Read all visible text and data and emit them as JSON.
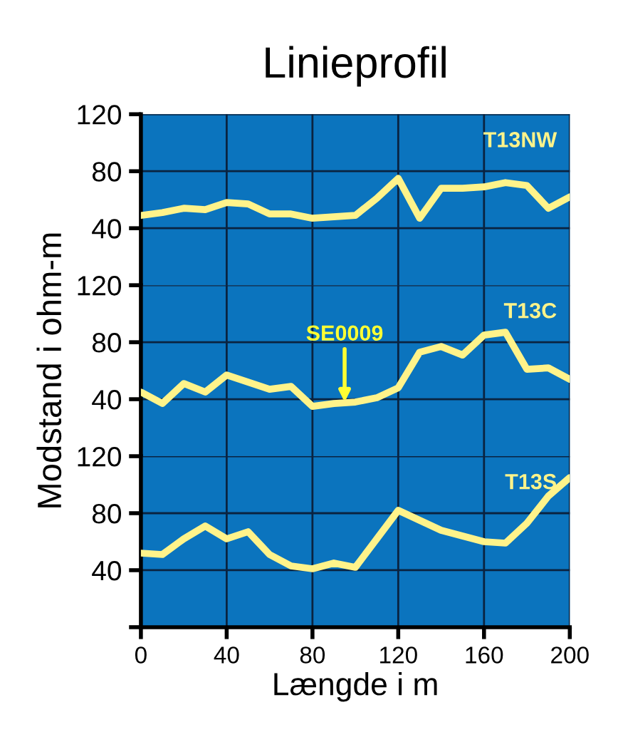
{
  "chart_data": [
    {
      "type": "line",
      "title": "Linieprofil",
      "x": [
        0,
        10,
        20,
        30,
        40,
        50,
        60,
        70,
        80,
        90,
        100,
        110,
        120,
        130,
        140,
        150,
        160,
        170,
        180,
        190,
        200
      ],
      "series": [
        {
          "name": "T13NW",
          "color": "#fff38a",
          "values": [
            49,
            51,
            54,
            53,
            58,
            57,
            50,
            50,
            47,
            48,
            49,
            61,
            75,
            47,
            68,
            68,
            69,
            72,
            70,
            54,
            62
          ]
        }
      ],
      "xlim": [
        0,
        200
      ],
      "xticks": [
        0,
        40,
        80,
        120,
        160,
        200
      ],
      "ylim": [
        0,
        120
      ],
      "yticks": [
        40,
        80,
        120
      ],
      "grid": true,
      "tick_labels": "y"
    },
    {
      "type": "line",
      "ylabel": "Modstand i ohm-m",
      "x": [
        0,
        10,
        20,
        30,
        40,
        50,
        60,
        70,
        80,
        90,
        100,
        110,
        120,
        130,
        140,
        150,
        160,
        170,
        180,
        190,
        200
      ],
      "series": [
        {
          "name": "T13C",
          "color": "#fff38a",
          "values": [
            45,
            37,
            51,
            45,
            57,
            52,
            47,
            49,
            35,
            37,
            38,
            41,
            48,
            73,
            77,
            71,
            85,
            87,
            61,
            62,
            54
          ]
        }
      ],
      "xlim": [
        0,
        200
      ],
      "xticks": [
        0,
        40,
        80,
        120,
        160,
        200
      ],
      "ylim": [
        0,
        120
      ],
      "yticks": [
        40,
        80,
        120
      ],
      "grid": true,
      "tick_labels": "y",
      "annotations": [
        {
          "text": "SE0009",
          "x": 95,
          "y": 38
        }
      ]
    },
    {
      "type": "line",
      "xlabel": "Længde i m",
      "x": [
        0,
        10,
        20,
        30,
        40,
        50,
        60,
        70,
        80,
        90,
        100,
        110,
        120,
        130,
        140,
        150,
        160,
        170,
        180,
        190,
        200
      ],
      "series": [
        {
          "name": "T13S",
          "color": "#fff38a",
          "values": [
            52,
            51,
            62,
            71,
            62,
            67,
            51,
            43,
            41,
            45,
            42,
            62,
            82,
            75,
            68,
            64,
            60,
            59,
            73,
            92,
            105
          ]
        }
      ],
      "xlim": [
        0,
        200
      ],
      "xticks": [
        0,
        40,
        80,
        120,
        160,
        200
      ],
      "ylim": [
        0,
        120
      ],
      "yticks": [
        {
          "value": 0,
          "label": null
        },
        40,
        80,
        120
      ],
      "grid": true
    }
  ]
}
